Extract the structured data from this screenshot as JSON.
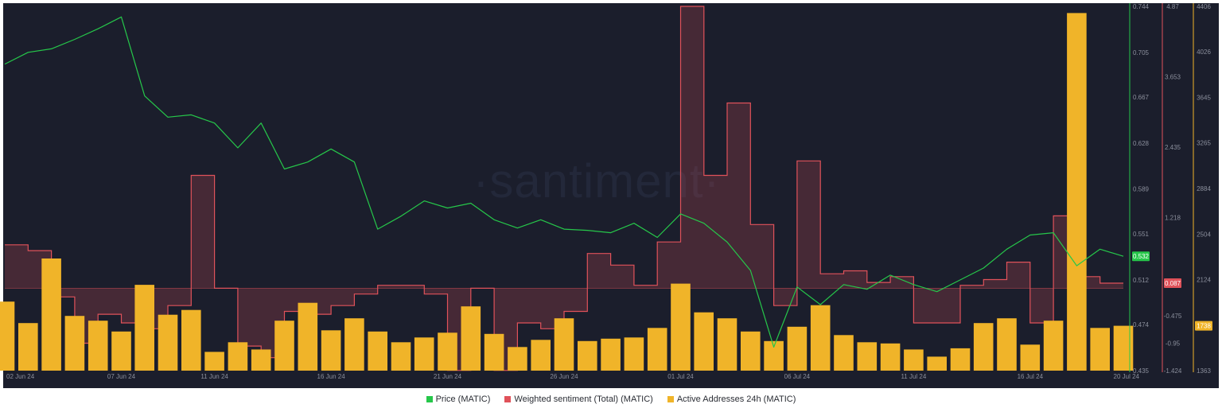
{
  "watermark": "·santiment·",
  "colors": {
    "background": "#1b1e2c",
    "price": "#26c74a",
    "sentiment": "#e0525a",
    "active": "#f0b429",
    "grid": "#262a3a"
  },
  "chart_data": {
    "type": "line",
    "x_ticks": [
      "02 Jun 24",
      "07 Jun 24",
      "11 Jun 24",
      "16 Jun 24",
      "21 Jun 24",
      "26 Jun 24",
      "01 Jul 24",
      "06 Jul 24",
      "11 Jul 24",
      "16 Jul 24",
      "20 Jul 24"
    ],
    "x_range": [
      "2024-06-02",
      "2024-07-20"
    ],
    "grid": false,
    "legend_position": "bottom",
    "axes": {
      "price": {
        "ticks": [
          "0.744",
          "0.705",
          "0.667",
          "0.628",
          "0.589",
          "0.551",
          "0.512",
          "0.474",
          "0.435"
        ],
        "range": [
          0.435,
          0.744
        ],
        "current": "0.532"
      },
      "sentiment": {
        "ticks": [
          "4.87",
          "3.653",
          "2.435",
          "1.218",
          "-0.475",
          "-0.95",
          "-1.424"
        ],
        "range": [
          -1.424,
          4.87
        ],
        "current": "0.087"
      },
      "active": {
        "ticks": [
          "4406",
          "4026",
          "3645",
          "3265",
          "2884",
          "2504",
          "2124",
          "1363"
        ],
        "range": [
          1363,
          4406
        ],
        "current": "1738"
      }
    },
    "series": [
      {
        "name": "Price (MATIC)",
        "type": "line",
        "color": "#26c74a",
        "x": [
          "2024-06-02",
          "2024-06-03",
          "2024-06-04",
          "2024-06-05",
          "2024-06-06",
          "2024-06-07",
          "2024-06-08",
          "2024-06-09",
          "2024-06-10",
          "2024-06-11",
          "2024-06-12",
          "2024-06-13",
          "2024-06-14",
          "2024-06-15",
          "2024-06-16",
          "2024-06-17",
          "2024-06-18",
          "2024-06-19",
          "2024-06-20",
          "2024-06-21",
          "2024-06-22",
          "2024-06-23",
          "2024-06-24",
          "2024-06-25",
          "2024-06-26",
          "2024-06-27",
          "2024-06-28",
          "2024-06-29",
          "2024-06-30",
          "2024-07-01",
          "2024-07-02",
          "2024-07-03",
          "2024-07-04",
          "2024-07-05",
          "2024-07-06",
          "2024-07-07",
          "2024-07-08",
          "2024-07-09",
          "2024-07-10",
          "2024-07-11",
          "2024-07-12",
          "2024-07-13",
          "2024-07-14",
          "2024-07-15",
          "2024-07-16",
          "2024-07-17",
          "2024-07-18",
          "2024-07-19",
          "2024-07-20"
        ],
        "values": [
          0.695,
          0.705,
          0.708,
          0.716,
          0.725,
          0.735,
          0.668,
          0.65,
          0.652,
          0.645,
          0.624,
          0.645,
          0.606,
          0.612,
          0.623,
          0.612,
          0.555,
          0.566,
          0.579,
          0.573,
          0.577,
          0.563,
          0.556,
          0.563,
          0.555,
          0.554,
          0.552,
          0.56,
          0.548,
          0.568,
          0.56,
          0.544,
          0.52,
          0.455,
          0.506,
          0.491,
          0.508,
          0.504,
          0.516,
          0.508,
          0.502,
          0.512,
          0.522,
          0.538,
          0.55,
          0.552,
          0.524,
          0.538,
          0.532
        ]
      },
      {
        "name": "Weighted sentiment (Total) (MATIC)",
        "type": "step-area",
        "color": "#e0525a",
        "x": [
          "2024-06-02",
          "2024-06-03",
          "2024-06-04",
          "2024-06-05",
          "2024-06-06",
          "2024-06-07",
          "2024-06-08",
          "2024-06-09",
          "2024-06-10",
          "2024-06-11",
          "2024-06-12",
          "2024-06-13",
          "2024-06-14",
          "2024-06-15",
          "2024-06-16",
          "2024-06-17",
          "2024-06-18",
          "2024-06-19",
          "2024-06-20",
          "2024-06-21",
          "2024-06-22",
          "2024-06-23",
          "2024-06-24",
          "2024-06-25",
          "2024-06-26",
          "2024-06-27",
          "2024-06-28",
          "2024-06-29",
          "2024-06-30",
          "2024-07-01",
          "2024-07-02",
          "2024-07-03",
          "2024-07-04",
          "2024-07-05",
          "2024-07-06",
          "2024-07-07",
          "2024-07-08",
          "2024-07-09",
          "2024-07-10",
          "2024-07-11",
          "2024-07-12",
          "2024-07-13",
          "2024-07-14",
          "2024-07-15",
          "2024-07-16",
          "2024-07-17",
          "2024-07-18",
          "2024-07-19",
          "2024-07-20"
        ],
        "values": [
          0.75,
          0.65,
          -0.15,
          -0.95,
          -0.45,
          -0.6,
          -0.7,
          -0.3,
          1.95,
          0.0,
          -1.0,
          -1.2,
          -0.4,
          -0.45,
          -0.3,
          -0.1,
          0.05,
          0.05,
          -0.1,
          -1.42,
          0.0,
          -1.42,
          -0.6,
          -0.7,
          -0.4,
          0.6,
          0.4,
          0.05,
          0.8,
          4.87,
          1.95,
          3.2,
          1.1,
          -0.3,
          2.2,
          0.25,
          0.3,
          0.1,
          0.2,
          -0.6,
          -0.6,
          0.05,
          0.15,
          0.45,
          -0.6,
          1.25,
          0.2,
          0.087,
          0.087
        ]
      },
      {
        "name": "Active Addresses 24h (MATIC)",
        "type": "bar",
        "color": "#f0b429",
        "x": [
          "2024-06-02",
          "2024-06-03",
          "2024-06-04",
          "2024-06-05",
          "2024-06-06",
          "2024-06-07",
          "2024-06-08",
          "2024-06-09",
          "2024-06-10",
          "2024-06-11",
          "2024-06-12",
          "2024-06-13",
          "2024-06-14",
          "2024-06-15",
          "2024-06-16",
          "2024-06-17",
          "2024-06-18",
          "2024-06-19",
          "2024-06-20",
          "2024-06-21",
          "2024-06-22",
          "2024-06-23",
          "2024-06-24",
          "2024-06-25",
          "2024-06-26",
          "2024-06-27",
          "2024-06-28",
          "2024-06-29",
          "2024-06-30",
          "2024-07-01",
          "2024-07-02",
          "2024-07-03",
          "2024-07-04",
          "2024-07-05",
          "2024-07-06",
          "2024-07-07",
          "2024-07-08",
          "2024-07-09",
          "2024-07-10",
          "2024-07-11",
          "2024-07-12",
          "2024-07-13",
          "2024-07-14",
          "2024-07-15",
          "2024-07-16",
          "2024-07-17",
          "2024-07-18",
          "2024-07-19",
          "2024-07-20"
        ],
        "values": [
          1940,
          1760,
          2300,
          1820,
          1780,
          1690,
          2080,
          1830,
          1870,
          1520,
          1600,
          1540,
          1780,
          1930,
          1700,
          1800,
          1690,
          1600,
          1640,
          1680,
          1900,
          1670,
          1560,
          1620,
          1800,
          1610,
          1630,
          1640,
          1720,
          2090,
          1850,
          1800,
          1690,
          1610,
          1730,
          1910,
          1660,
          1600,
          1590,
          1540,
          1480,
          1550,
          1760,
          1800,
          1580,
          1780,
          4350,
          1720,
          1738
        ]
      }
    ]
  },
  "legend": {
    "items": [
      {
        "label": "Price (MATIC)",
        "color": "#26c74a"
      },
      {
        "label": "Weighted sentiment (Total) (MATIC)",
        "color": "#e0525a"
      },
      {
        "label": "Active Addresses 24h (MATIC)",
        "color": "#f0b429"
      }
    ]
  }
}
